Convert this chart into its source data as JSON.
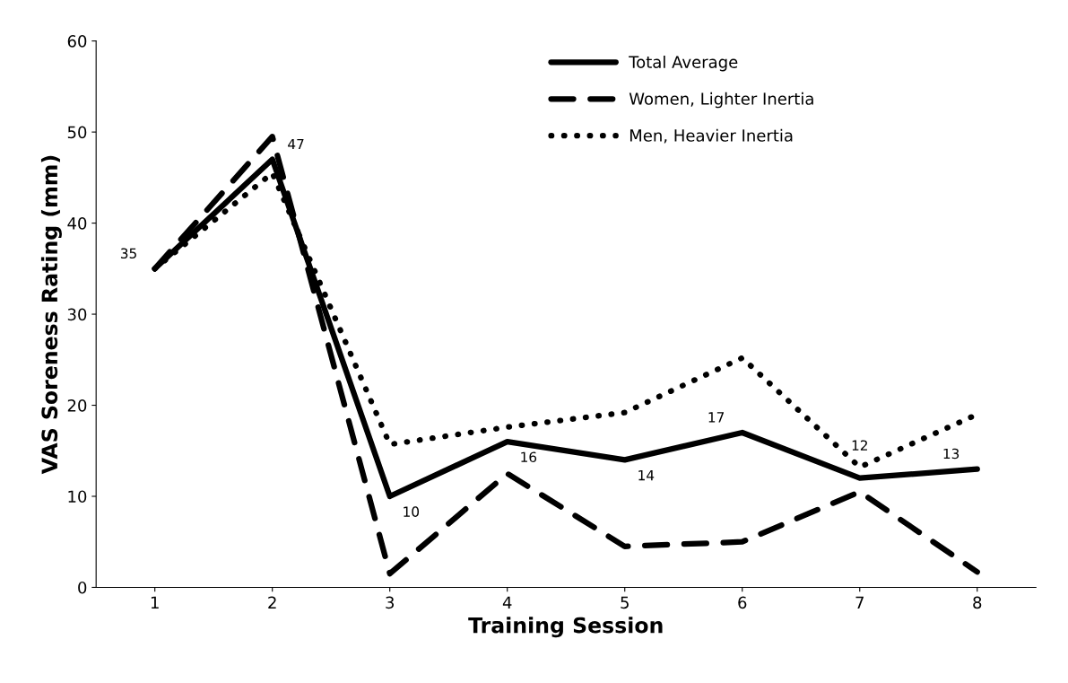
{
  "chart_data": {
    "type": "line",
    "xlabel": "Training Session",
    "ylabel": "VAS Soreness Rating (mm)",
    "categories": [
      "1",
      "2",
      "3",
      "4",
      "5",
      "6",
      "7",
      "8"
    ],
    "series": [
      {
        "name": "Total Average",
        "color": "#000000",
        "line_style": "solid",
        "values": [
          35,
          47,
          10,
          16,
          14,
          17,
          12,
          13
        ],
        "value_labels": [
          "35",
          "47",
          "10",
          "16",
          "14",
          "17",
          "12",
          "13"
        ]
      },
      {
        "name": "Women, Lighter Inertia",
        "color": "#000000",
        "line_style": "dashed",
        "values": [
          35,
          49.5,
          1.5,
          12.5,
          4.5,
          5,
          10.5,
          1.7
        ]
      },
      {
        "name": "Men, Heavier Inertia",
        "color": "#000000",
        "line_style": "dotted",
        "values": [
          35,
          45.5,
          15.7,
          17.6,
          19.2,
          25.2,
          13.2,
          19
        ]
      }
    ],
    "ylim": [
      0,
      60
    ],
    "yticks": [
      0,
      10,
      20,
      30,
      40,
      50,
      60
    ],
    "grid": false,
    "legend": "top right",
    "marker": "none"
  }
}
